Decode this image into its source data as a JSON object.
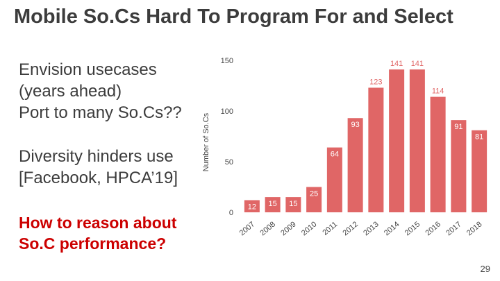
{
  "slide": {
    "title": "Mobile So.Cs Hard To Program For and Select",
    "bullet_1": [
      "Envision usecases",
      "(years ahead)",
      "Port to many So.Cs??"
    ],
    "bullet_2": [
      "Diversity hinders use",
      "[Facebook, HPCA’19]"
    ],
    "question": [
      "How to reason about",
      "So.C performance?"
    ],
    "page_number": "29"
  },
  "colors": {
    "bar": "#e06666",
    "label": "#e06666",
    "question": "#cc0000",
    "text": "#3c3c3c"
  },
  "chart_data": {
    "type": "bar",
    "title": "",
    "xlabel": "",
    "ylabel": "Number of So.Cs",
    "categories": [
      "2007",
      "2008",
      "2009",
      "2010",
      "2011",
      "2012",
      "2013",
      "2014",
      "2015",
      "2016",
      "2017",
      "2018"
    ],
    "values": [
      12,
      15,
      15,
      25,
      64,
      93,
      123,
      141,
      141,
      114,
      91,
      81
    ],
    "yticks": [
      0,
      50,
      100,
      150
    ],
    "ylim": [
      0,
      150
    ],
    "grid": false,
    "data_labels": true
  }
}
